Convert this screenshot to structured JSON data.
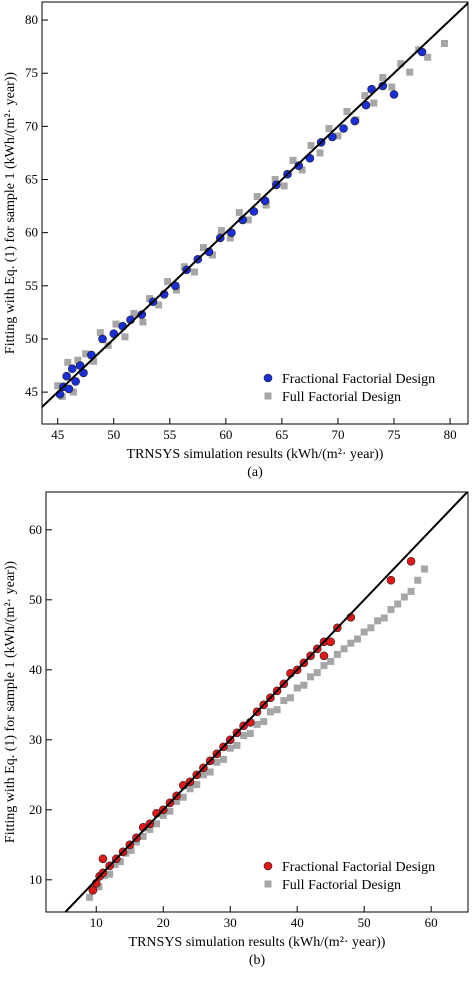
{
  "chart_data": [
    {
      "type": "scatter",
      "caption": "(a)",
      "x_label": "TRNSYS simulation results (kWh/(m²· year))",
      "y_label": "Fitting with Eq. (1) for sample 1 (kWh/(m²· year))",
      "xlim": [
        43.6,
        81.6
      ],
      "ylim": [
        42,
        81.7
      ],
      "xticks": [
        45,
        50,
        55,
        60,
        65,
        70,
        75,
        80
      ],
      "yticks": [
        45,
        50,
        55,
        60,
        65,
        70,
        75,
        80
      ],
      "grid": false,
      "legend": "lower right",
      "series": [
        {
          "name": "Fractional Factorial Design",
          "color": "#1a2fd6",
          "marker": "circle",
          "x": [
            45.2,
            45.5,
            45.8,
            46,
            46.3,
            46.6,
            47,
            47.3,
            48,
            49,
            50,
            50.8,
            51.5,
            52.5,
            53.5,
            54.5,
            55.5,
            56.5,
            57.5,
            58.5,
            59.5,
            60.5,
            61.5,
            62.5,
            63.5,
            64.5,
            65.5,
            66.5,
            67.5,
            68.5,
            69.5,
            70.5,
            71.5,
            72.5,
            73,
            74,
            75,
            77.5
          ],
          "values": [
            44.8,
            45.5,
            46.5,
            45.3,
            47.2,
            46,
            47.5,
            46.8,
            48.5,
            50,
            50.5,
            51.2,
            51.8,
            52.3,
            53.5,
            54.2,
            55,
            56.5,
            57.5,
            58.2,
            59.5,
            60,
            61.2,
            62,
            63,
            64.5,
            65.5,
            66.3,
            67,
            68.5,
            69,
            69.8,
            70.5,
            72,
            73.5,
            73.8,
            73,
            77
          ]
        },
        {
          "name": "Full Factorial Design",
          "color": "#a6a6a6",
          "marker": "square",
          "x": [
            45,
            45.4,
            45.9,
            46.4,
            46.8,
            47.5,
            48.2,
            48.8,
            49.5,
            50.2,
            51,
            51.8,
            52.6,
            53.2,
            54,
            54.8,
            55.6,
            56.3,
            57.2,
            58,
            58.8,
            59.6,
            60.4,
            61.2,
            62,
            62.8,
            63.6,
            64.4,
            65.2,
            66,
            66.8,
            67.6,
            68.4,
            69.2,
            70,
            70.8,
            71.6,
            72.4,
            73.2,
            74,
            74.8,
            75.6,
            76.4,
            77.2,
            78,
            79.5
          ],
          "values": [
            45.6,
            44.6,
            47.8,
            45,
            48,
            48.6,
            47.9,
            50.6,
            49.4,
            51.4,
            50.2,
            52.4,
            51.6,
            53.8,
            53.2,
            55.4,
            54.6,
            56.8,
            56.3,
            58.6,
            57.9,
            60.2,
            59.5,
            61.9,
            61.2,
            63.4,
            62.6,
            65,
            64.4,
            66.8,
            65.9,
            68.2,
            67.5,
            69.8,
            69.1,
            71.4,
            70.6,
            72.9,
            72.2,
            74.6,
            73.7,
            75.9,
            75.1,
            77.2,
            76.5,
            77.8
          ]
        }
      ]
    },
    {
      "type": "scatter",
      "caption": "(b)",
      "x_label": "TRNSYS simulation results (kWh/(m²· year))",
      "y_label": "Fitting with Eq. (1) for sample 1 (kWh/(m²· year))",
      "xlim": [
        2.5,
        65.5
      ],
      "ylim": [
        5.4,
        65.4
      ],
      "xticks": [
        10,
        20,
        30,
        40,
        50,
        60
      ],
      "yticks": [
        10,
        20,
        30,
        40,
        50,
        60
      ],
      "grid": false,
      "legend": "lower right",
      "series": [
        {
          "name": "Fractional Factorial Design",
          "color": "#e01818",
          "marker": "circle",
          "x": [
            9.5,
            10,
            10.5,
            11,
            11,
            12,
            13,
            14,
            15,
            16,
            17,
            18,
            19,
            20,
            21,
            22,
            23,
            24,
            25,
            26,
            27,
            28,
            29,
            30,
            31,
            32,
            33,
            34,
            35,
            36,
            37,
            38,
            39,
            40,
            41,
            42,
            43,
            44,
            44,
            45,
            46,
            48,
            54,
            57
          ],
          "values": [
            8.5,
            9.5,
            10.5,
            11,
            13,
            12,
            13,
            14,
            15,
            16,
            17.5,
            18,
            19.5,
            20,
            21,
            22,
            23.5,
            24,
            25,
            26,
            27,
            28,
            29,
            30,
            31,
            32,
            32.5,
            34,
            35,
            36,
            37,
            38,
            39.5,
            40,
            41,
            42,
            43,
            44,
            42,
            44,
            46,
            47.5,
            52.8,
            55.5
          ]
        },
        {
          "name": "Full Factorial Design",
          "color": "#a6a6a6",
          "marker": "square",
          "x": [
            9,
            9.6,
            10.4,
            11.2,
            12,
            12.8,
            13.6,
            14.4,
            15.2,
            16,
            17,
            18,
            19,
            20,
            21,
            22,
            23,
            24,
            25,
            26,
            27,
            28,
            29,
            30,
            31,
            32,
            33,
            34,
            35,
            36,
            37,
            38,
            39,
            40,
            41,
            42,
            43,
            44,
            45,
            46,
            47,
            48,
            49,
            50,
            51,
            52,
            53,
            54,
            55,
            56,
            57,
            58,
            59
          ],
          "values": [
            7.5,
            8.8,
            9,
            10.6,
            10.8,
            12.2,
            12.6,
            13.8,
            14.2,
            15.4,
            16.2,
            17.2,
            18,
            19.2,
            19.8,
            21.2,
            21.8,
            23,
            23.6,
            25,
            25.4,
            26.8,
            27.2,
            28.8,
            29.2,
            30.6,
            30.9,
            32.2,
            32.6,
            34,
            34.3,
            35.6,
            36,
            37.4,
            37.8,
            39,
            39.6,
            40.6,
            41.2,
            42.2,
            43,
            43.8,
            44.4,
            45.4,
            46,
            47,
            47.4,
            48.6,
            49.4,
            50.4,
            51.2,
            52.8,
            54.4
          ]
        }
      ]
    }
  ]
}
